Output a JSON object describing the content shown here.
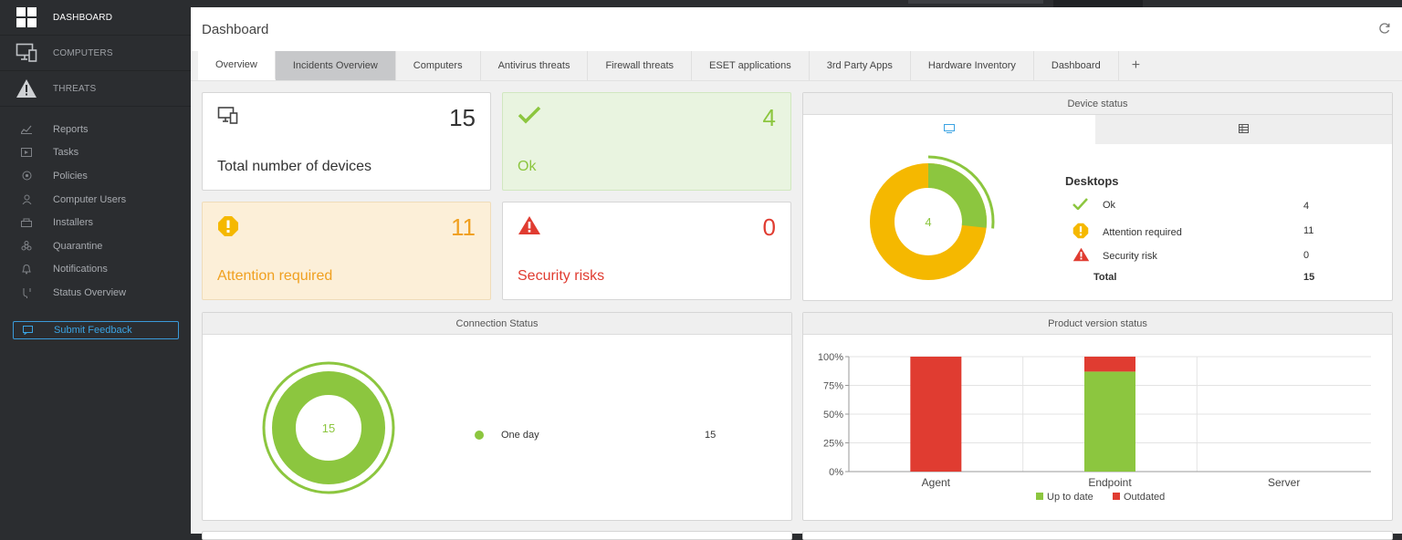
{
  "sidebar": {
    "main": [
      {
        "label": "DASHBOARD",
        "icon": "dashboard-grid-icon"
      },
      {
        "label": "COMPUTERS",
        "icon": "computers-icon"
      },
      {
        "label": "THREATS",
        "icon": "threats-warning-icon"
      }
    ],
    "items": [
      {
        "label": "Reports",
        "icon": "reports-icon"
      },
      {
        "label": "Tasks",
        "icon": "tasks-icon"
      },
      {
        "label": "Policies",
        "icon": "policies-icon"
      },
      {
        "label": "Computer Users",
        "icon": "computer-users-icon"
      },
      {
        "label": "Installers",
        "icon": "installers-icon"
      },
      {
        "label": "Quarantine",
        "icon": "quarantine-icon"
      },
      {
        "label": "Notifications",
        "icon": "notifications-icon"
      },
      {
        "label": "Status Overview",
        "icon": "status-overview-icon"
      }
    ],
    "feedback": "Submit Feedback"
  },
  "header": {
    "title": "Dashboard"
  },
  "tabs": [
    "Overview",
    "Incidents Overview",
    "Computers",
    "Antivirus threats",
    "Firewall threats",
    "ESET applications",
    "3rd Party Apps",
    "Hardware Inventory",
    "Dashboard",
    "+"
  ],
  "stats": {
    "total": {
      "value": "15",
      "label": "Total number of devices"
    },
    "ok": {
      "value": "4",
      "label": "Ok"
    },
    "attention": {
      "value": "11",
      "label": "Attention required"
    },
    "security": {
      "value": "0",
      "label": "Security risks"
    }
  },
  "device_status": {
    "title": "Device status",
    "center": "4",
    "group": "Desktops",
    "rows": [
      {
        "label": "Ok",
        "value": "4"
      },
      {
        "label": "Attention required",
        "value": "11"
      },
      {
        "label": "Security risk",
        "value": "0"
      }
    ],
    "total_label": "Total",
    "total_value": "15"
  },
  "connection": {
    "title": "Connection Status",
    "center": "15",
    "legend_label": "One day",
    "legend_value": "15"
  },
  "product": {
    "title": "Product version status",
    "yticks": [
      "100%",
      "75%",
      "50%",
      "25%",
      "0%"
    ],
    "categories": [
      "Agent",
      "Endpoint",
      "Server"
    ],
    "legend": [
      "Up to date",
      "Outdated"
    ]
  },
  "colors": {
    "green": "#8cc63f",
    "orange": "#f5b800",
    "red": "#e03c31",
    "blue": "#3aa3e3"
  },
  "chart_data": [
    {
      "type": "pie",
      "title": "Device status",
      "labels": [
        "Ok",
        "Attention required",
        "Security risk"
      ],
      "values": [
        4,
        11,
        0
      ]
    },
    {
      "type": "pie",
      "title": "Connection Status",
      "labels": [
        "One day"
      ],
      "values": [
        15
      ]
    },
    {
      "type": "bar",
      "title": "Product version status",
      "categories": [
        "Agent",
        "Endpoint",
        "Server"
      ],
      "series": [
        {
          "name": "Up to date",
          "values": [
            0,
            87,
            0
          ]
        },
        {
          "name": "Outdated",
          "values": [
            100,
            13,
            0
          ]
        }
      ],
      "ylim": [
        0,
        100
      ],
      "stacked": true
    }
  ]
}
